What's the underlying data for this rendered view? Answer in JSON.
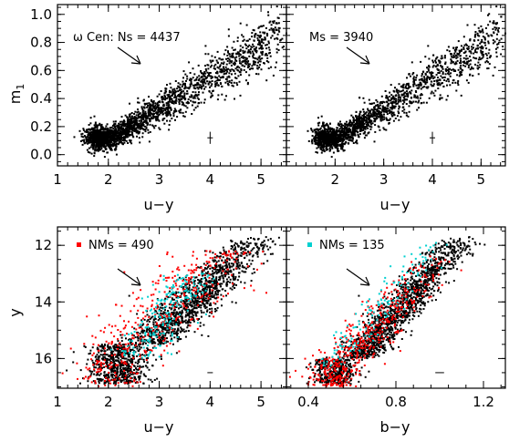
{
  "chart_data": [
    {
      "type": "scatter",
      "annotation": "ω Cen: Ns = 4437",
      "xlabel": "u−y",
      "ylabel": "m",
      "ylabel_sub": "1",
      "xlim": [
        1,
        5.5
      ],
      "ylim": [
        -0.08,
        1.07
      ],
      "xticks": [
        "1",
        "2",
        "3",
        "4",
        "5"
      ],
      "yticks": [
        "0.0",
        "0.2",
        "0.4",
        "0.6",
        "0.8",
        "1.0"
      ],
      "yticks_values": [
        0,
        0.2,
        0.4,
        0.6,
        0.8,
        1.0
      ],
      "xticks_values": [
        1,
        2,
        3,
        4,
        5
      ],
      "series": [
        {
          "color": "#000000",
          "shape_points": [
            [
              1.6,
              0.2
            ],
            [
              1.9,
              0.1
            ],
            [
              2.2,
              0.08
            ],
            [
              2.6,
              0.12
            ],
            [
              3.0,
              0.2
            ],
            [
              3.5,
              0.3
            ],
            [
              4.0,
              0.45
            ],
            [
              4.5,
              0.6
            ],
            [
              5.0,
              0.72
            ],
            [
              5.3,
              0.85
            ]
          ],
          "count": 4437
        }
      ],
      "error_bar": {
        "x": 4.0,
        "y": 0.12,
        "dx": 0.03,
        "dy": 0.03
      }
    },
    {
      "type": "scatter",
      "annotation": "Ms = 3940",
      "xlabel": "u−y",
      "xlim": [
        1,
        5.5
      ],
      "ylim": [
        -0.08,
        1.07
      ],
      "xticks": [
        "2",
        "3",
        "4",
        "5"
      ],
      "xticks_values": [
        2,
        3,
        4,
        5
      ],
      "series": [
        {
          "color": "#000000",
          "count": 3940
        }
      ],
      "error_bar": {
        "x": 4.0,
        "y": 0.12,
        "dx": 0.03,
        "dy": 0.03
      }
    },
    {
      "type": "scatter",
      "annotation": "NMs = 490",
      "xlabel": "u−y",
      "ylabel": "y",
      "xlim": [
        1,
        5.5
      ],
      "ylim": [
        17.05,
        11.35
      ],
      "xticks": [
        "1",
        "2",
        "3",
        "4",
        "5"
      ],
      "yticks": [
        "12",
        "14",
        "16"
      ],
      "yticks_values": [
        12,
        14,
        16
      ],
      "xticks_values": [
        1,
        2,
        3,
        4,
        5
      ],
      "series": [
        {
          "color": "#000000"
        },
        {
          "color": "#00d0d0"
        },
        {
          "color": "#ff0000",
          "count": 490
        }
      ],
      "error_bar": {
        "x": 4.0,
        "y": 16.5,
        "dx": 0.05,
        "dy": 0.0
      }
    },
    {
      "type": "scatter",
      "annotation": "NMs = 135",
      "xlabel": "b−y",
      "xlim": [
        0.3,
        1.3
      ],
      "ylim": [
        17.05,
        11.35
      ],
      "xticks": [
        "0.4",
        "0.8",
        "1.2"
      ],
      "xticks_values": [
        0.4,
        0.8,
        1.2
      ],
      "series": [
        {
          "color": "#000000"
        },
        {
          "color": "#ff0000"
        },
        {
          "color": "#00d0d0",
          "count": 135
        }
      ],
      "error_bar": {
        "x": 1.0,
        "y": 16.5,
        "dx": 0.02,
        "dy": 0.0
      }
    }
  ]
}
